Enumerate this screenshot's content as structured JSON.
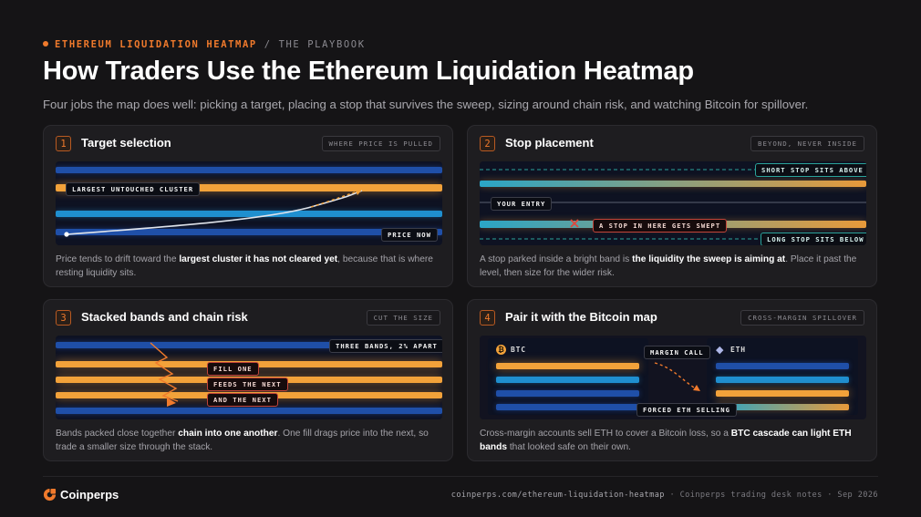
{
  "header": {
    "eyebrow": "ETHEREUM LIQUIDATION HEATMAP",
    "eyebrow_sep": "/",
    "eyebrow_sub": "THE PLAYBOOK",
    "title": "How Traders Use the Ethereum Liquidation Heatmap",
    "subtitle": "Four jobs the map does well: picking a target, placing a stop that survives the sweep, sizing around chain risk, and watching Bitcoin for spillover."
  },
  "cards": [
    {
      "num": "1",
      "title": "Target selection",
      "tag": "WHERE PRICE IS PULLED",
      "chips": {
        "cluster": "LARGEST UNTOUCHED CLUSTER",
        "price": "PRICE NOW"
      },
      "body_pre": "Price tends to drift toward the ",
      "body_bold": "largest cluster it has not cleared yet",
      "body_post": ", because that is where resting liquidity sits."
    },
    {
      "num": "2",
      "title": "Stop placement",
      "tag": "BEYOND, NEVER INSIDE",
      "chips": {
        "short": "SHORT STOP SITS ABOVE",
        "entry": "YOUR ENTRY",
        "swept": "A STOP IN HERE GETS SWEPT",
        "long": "LONG STOP SITS BELOW"
      },
      "body_pre": "A stop parked inside a bright band is ",
      "body_bold": "the liquidity the sweep is aiming at",
      "body_post": ". Place it past the level, then size for the wider risk."
    },
    {
      "num": "3",
      "title": "Stacked bands and chain risk",
      "tag": "CUT THE SIZE",
      "chips": {
        "three": "THREE BANDS, 2% APART",
        "fill": "FILL ONE",
        "feeds": "FEEDS THE NEXT",
        "and": "AND THE NEXT"
      },
      "body_pre": "Bands packed close together ",
      "body_bold": "chain into one another",
      "body_post": ". One fill drags price into the next, so trade a smaller size through the stack."
    },
    {
      "num": "4",
      "title": "Pair it with the Bitcoin map",
      "tag": "CROSS-MARGIN SPILLOVER",
      "chips": {
        "btc": "BTC",
        "eth": "ETH",
        "margin": "MARGIN CALL",
        "forced": "FORCED ETH SELLING"
      },
      "body_pre": "Cross-margin accounts sell ETH to cover a Bitcoin loss, so a ",
      "body_bold": "BTC cascade can light ETH bands",
      "body_post": " that looked safe on their own."
    }
  ],
  "footer": {
    "brand": "Coinperps",
    "url": "coinperps.com/ethereum-liquidation-heatmap",
    "sep1": "·",
    "note": "Coinperps trading desk notes",
    "sep2": "·",
    "date": "Sep 2026"
  },
  "colors": {
    "accent": "#f07a2c",
    "band_orange": "#f2a23a",
    "band_blue": "#1f4fa8",
    "band_cyan": "#1f8fcf",
    "teal": "#2aa39a",
    "red": "#c2443a"
  }
}
